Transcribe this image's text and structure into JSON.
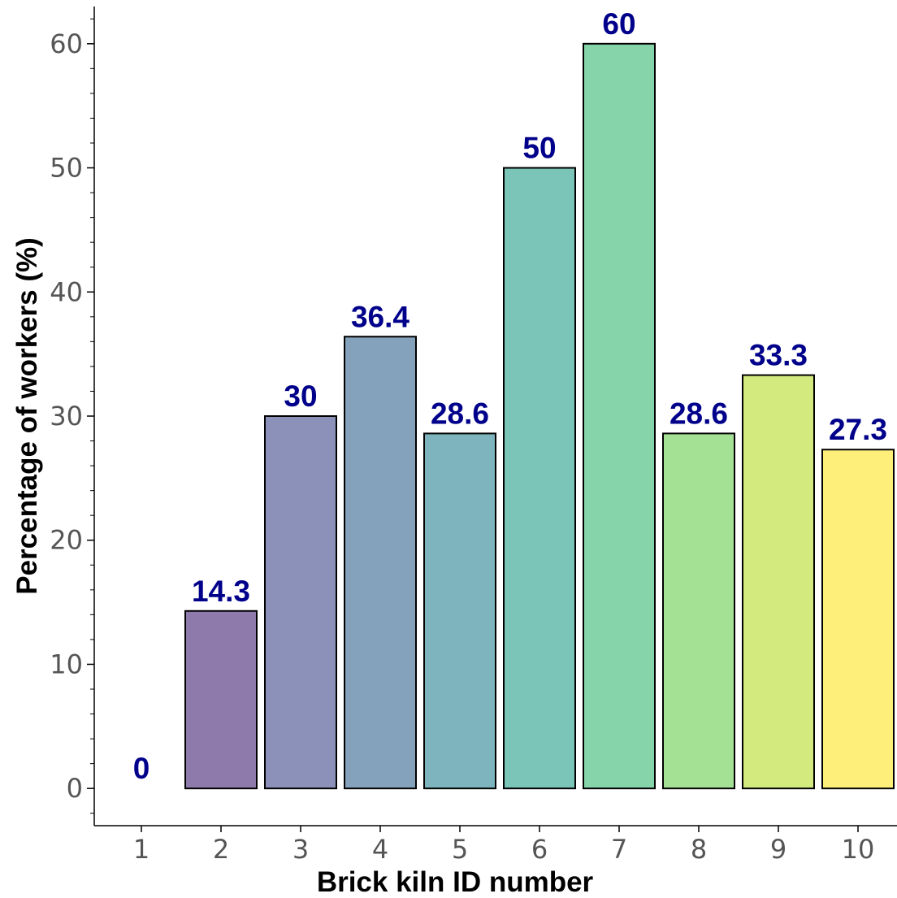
{
  "chart_data": {
    "type": "bar",
    "categories": [
      "1",
      "2",
      "3",
      "4",
      "5",
      "6",
      "7",
      "8",
      "9",
      "10"
    ],
    "values": [
      0,
      14.3,
      30,
      36.4,
      28.6,
      50,
      60,
      28.6,
      33.3,
      27.3
    ],
    "data_labels": [
      "0",
      "14.3",
      "30",
      "36.4",
      "28.6",
      "50",
      "60",
      "28.6",
      "33.3",
      "27.3"
    ],
    "colors": [
      "#440154",
      "#8f7aac",
      "#8b91b8",
      "#84a2bb",
      "#7db4bd",
      "#7bc4b8",
      "#85d4aa",
      "#a5e195",
      "#d3ea7f",
      "#fdef7a"
    ],
    "xlabel": "Brick kiln ID number",
    "ylabel": "Percentage of workers (%)",
    "ylim": [
      -3,
      63
    ],
    "yticks": [
      0,
      10,
      20,
      30,
      40,
      50,
      60
    ],
    "ytick_labels": [
      "0",
      "10",
      "20",
      "30",
      "40",
      "50",
      "60"
    ],
    "grid": false,
    "legend": "none",
    "data_label_color": "#00008b"
  }
}
